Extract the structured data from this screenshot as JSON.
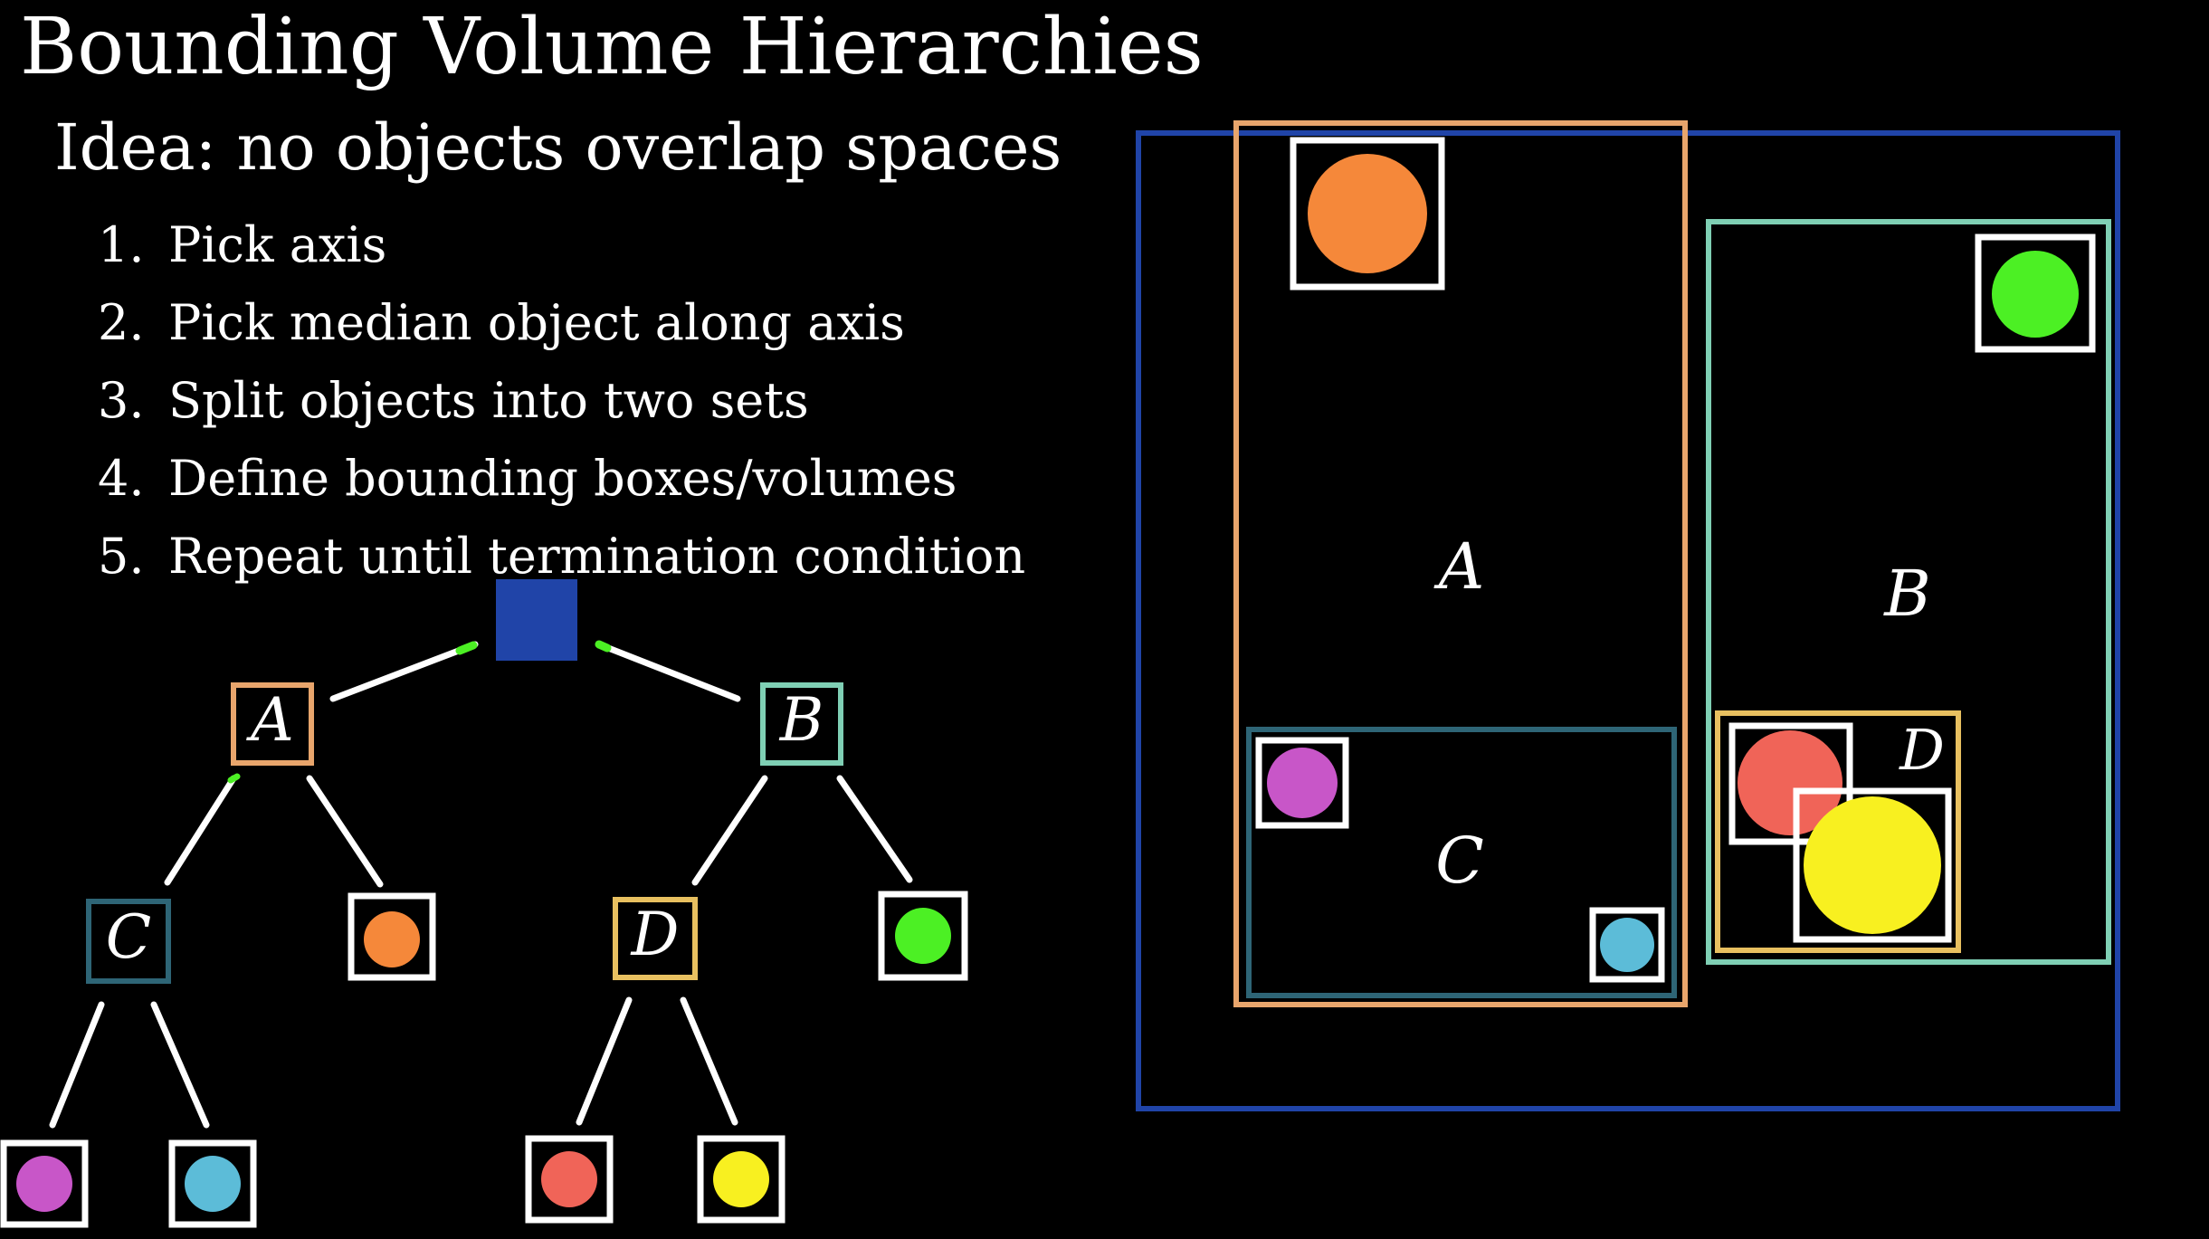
{
  "title": "Bounding Volume Hierarchies",
  "idea": "Idea: no objects overlap spaces",
  "steps": [
    {
      "num": "1.",
      "text": "Pick axis"
    },
    {
      "num": "2.",
      "text": "Pick median object along axis"
    },
    {
      "num": "3.",
      "text": "Split objects into two sets"
    },
    {
      "num": "4.",
      "text": "Define bounding boxes/volumes"
    },
    {
      "num": "5.",
      "text": "Repeat until termination condition"
    }
  ],
  "labels": {
    "a": "A",
    "b": "B",
    "c": "C",
    "d": "D"
  },
  "colors": {
    "root": "#2044a8",
    "a_box": "#e8a56c",
    "b_box": "#7fcfb4",
    "c_box": "#2e6576",
    "d_box": "#e8c060",
    "object_box": "#ffffff",
    "orange": "#f5883a",
    "green": "#4cf024",
    "magenta": "#c856c8",
    "cyan": "#5cbcd8",
    "red": "#f06458",
    "yellow": "#f8f020"
  }
}
